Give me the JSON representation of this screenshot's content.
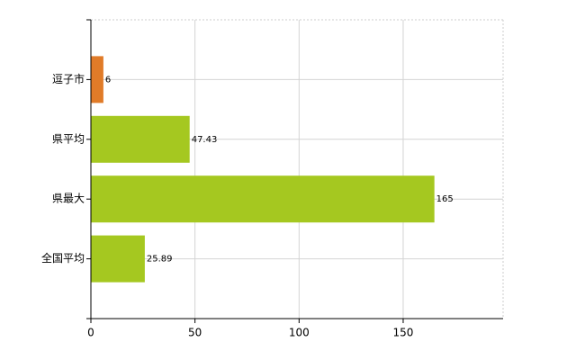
{
  "chart_data": {
    "type": "bar",
    "orientation": "horizontal",
    "categories": [
      "逗子市",
      "県平均",
      "県最大",
      "全国平均"
    ],
    "values": [
      6,
      47.43,
      165,
      25.89
    ],
    "colors": [
      "#e07b28",
      "#a5c820",
      "#a5c820",
      "#a5c820"
    ],
    "xlim": [
      0,
      198
    ],
    "xticks": [
      0,
      50,
      100,
      150
    ],
    "grid": true
  }
}
